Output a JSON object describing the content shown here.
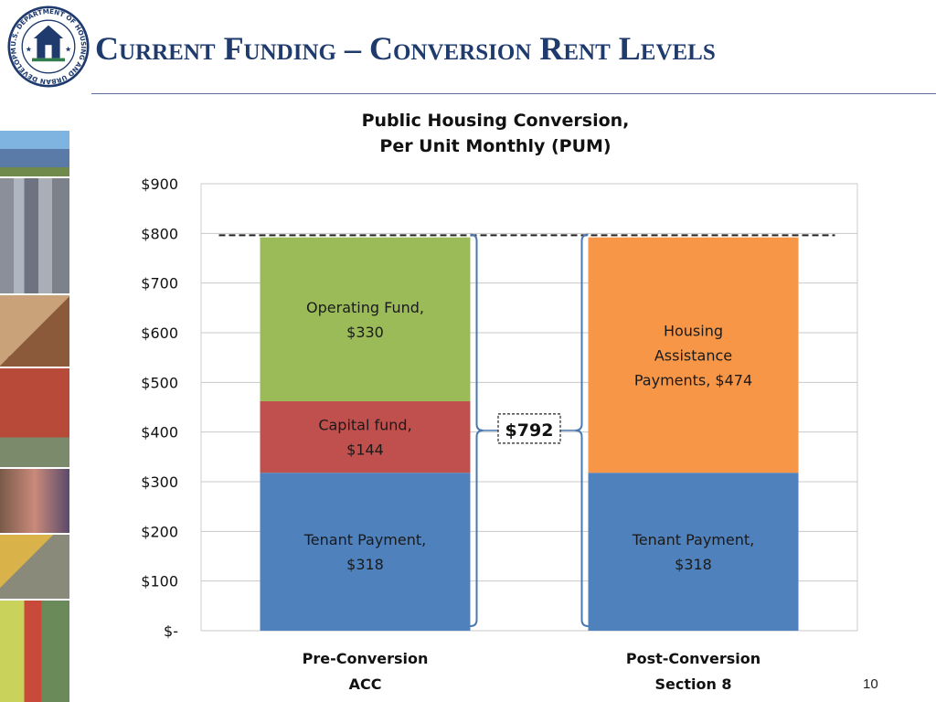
{
  "slide": {
    "title": "Current Funding – Conversion Rent Levels",
    "page_number": "10",
    "seal_text": "U.S. DEPARTMENT OF HOUSING AND URBAN DEVELOPMENT"
  },
  "chart_data": {
    "type": "bar",
    "stacked": true,
    "title_lines": [
      "Public Housing Conversion,",
      "Per Unit Monthly (PUM)"
    ],
    "categories": [
      {
        "line1": "Pre-Conversion",
        "line2": "ACC"
      },
      {
        "line1": "Post-Conversion",
        "line2": "Section 8"
      }
    ],
    "segments": [
      {
        "category": 0,
        "value": 318,
        "label_lines": [
          "Tenant Payment,",
          "$318"
        ],
        "color": "#4f81bd"
      },
      {
        "category": 0,
        "value": 144,
        "label_lines": [
          "Capital fund,",
          "$144"
        ],
        "color": "#c0504d"
      },
      {
        "category": 0,
        "value": 330,
        "label_lines": [
          "Operating Fund,",
          "$330"
        ],
        "color": "#9bbb59"
      },
      {
        "category": 1,
        "value": 318,
        "label_lines": [
          "Tenant Payment,",
          "$318"
        ],
        "color": "#4f81bd"
      },
      {
        "category": 1,
        "value": 474,
        "label_lines": [
          "Housing",
          "Assistance",
          "Payments,  $474"
        ],
        "color": "#f79646"
      }
    ],
    "yticks": [
      {
        "value": 0,
        "label": "$-"
      },
      {
        "value": 100,
        "label": "$100"
      },
      {
        "value": 200,
        "label": "$200"
      },
      {
        "value": 300,
        "label": "$300"
      },
      {
        "value": 400,
        "label": "$400"
      },
      {
        "value": 500,
        "label": "$500"
      },
      {
        "value": 600,
        "label": "$600"
      },
      {
        "value": 700,
        "label": "$700"
      },
      {
        "value": 800,
        "label": "$800"
      },
      {
        "value": 900,
        "label": "$900"
      }
    ],
    "ylim": [
      0,
      900
    ],
    "grid": true,
    "reference_line": {
      "value": 800,
      "style": "dashed"
    },
    "callout": {
      "label": "$792",
      "value": 792
    }
  }
}
